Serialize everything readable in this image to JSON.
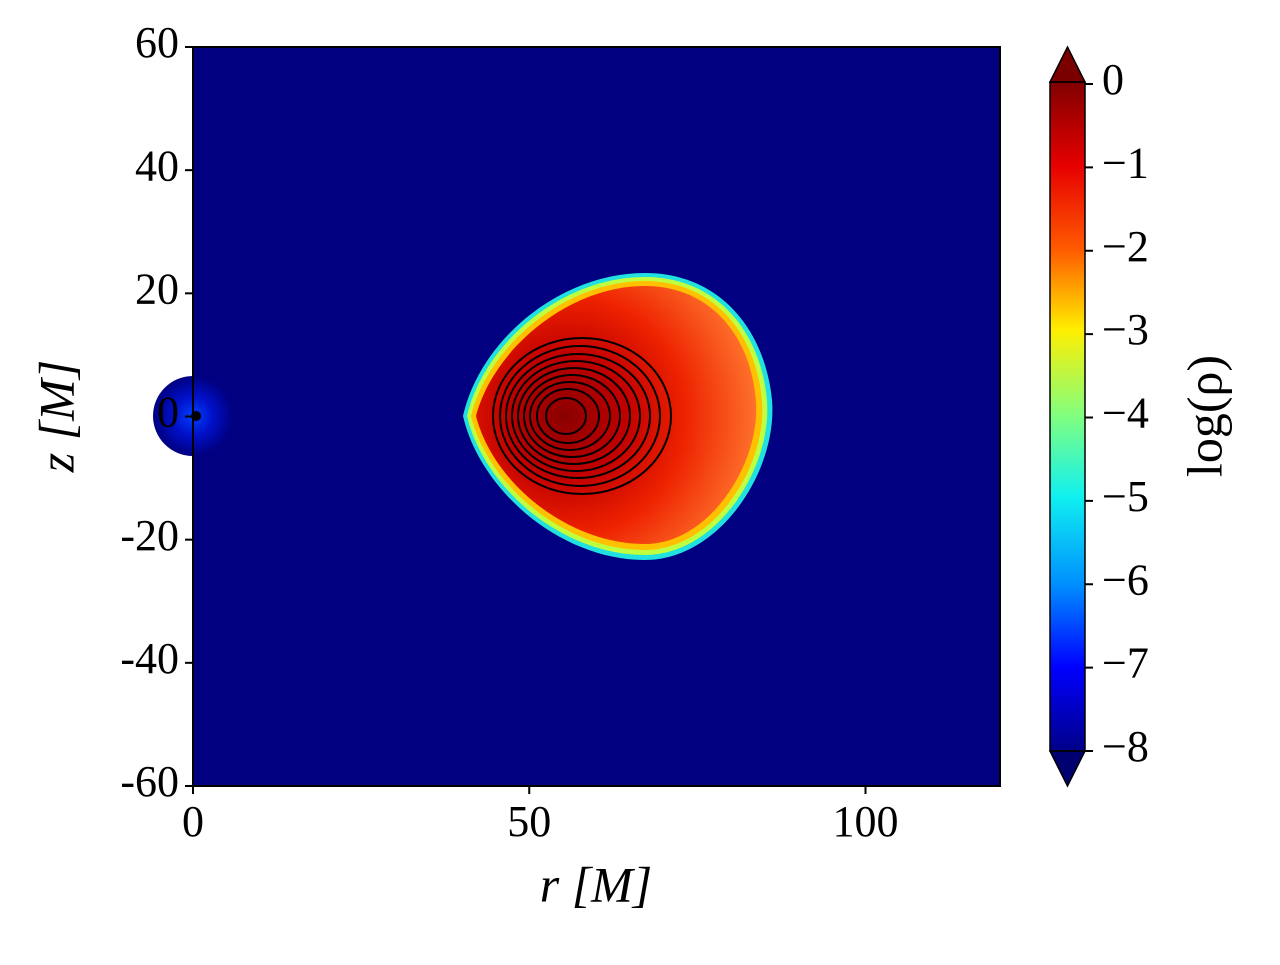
{
  "chart_data": {
    "type": "heatmap",
    "x_label": "r [M]",
    "y_label": "z [M]",
    "xlim": [
      0,
      120
    ],
    "xticks": [
      0,
      50,
      100
    ],
    "ylim": [
      -60,
      60
    ],
    "yticks": [
      60,
      40,
      20,
      0,
      -20,
      -40,
      -60
    ],
    "colorbar": {
      "label": "log(ρ)",
      "lim": [
        -8,
        0
      ],
      "ticks": [
        0,
        {
          "value": -1,
          "label": "−1"
        },
        {
          "value": -2,
          "label": "−2"
        },
        {
          "value": -3,
          "label": "−3"
        },
        {
          "value": -4,
          "label": "−4"
        },
        {
          "value": -5,
          "label": "−5"
        },
        {
          "value": -6,
          "label": "−6"
        },
        {
          "value": -7,
          "label": "−7"
        },
        {
          "value": -8,
          "label": "−8"
        }
      ],
      "colormap": "jet"
    }
  }
}
